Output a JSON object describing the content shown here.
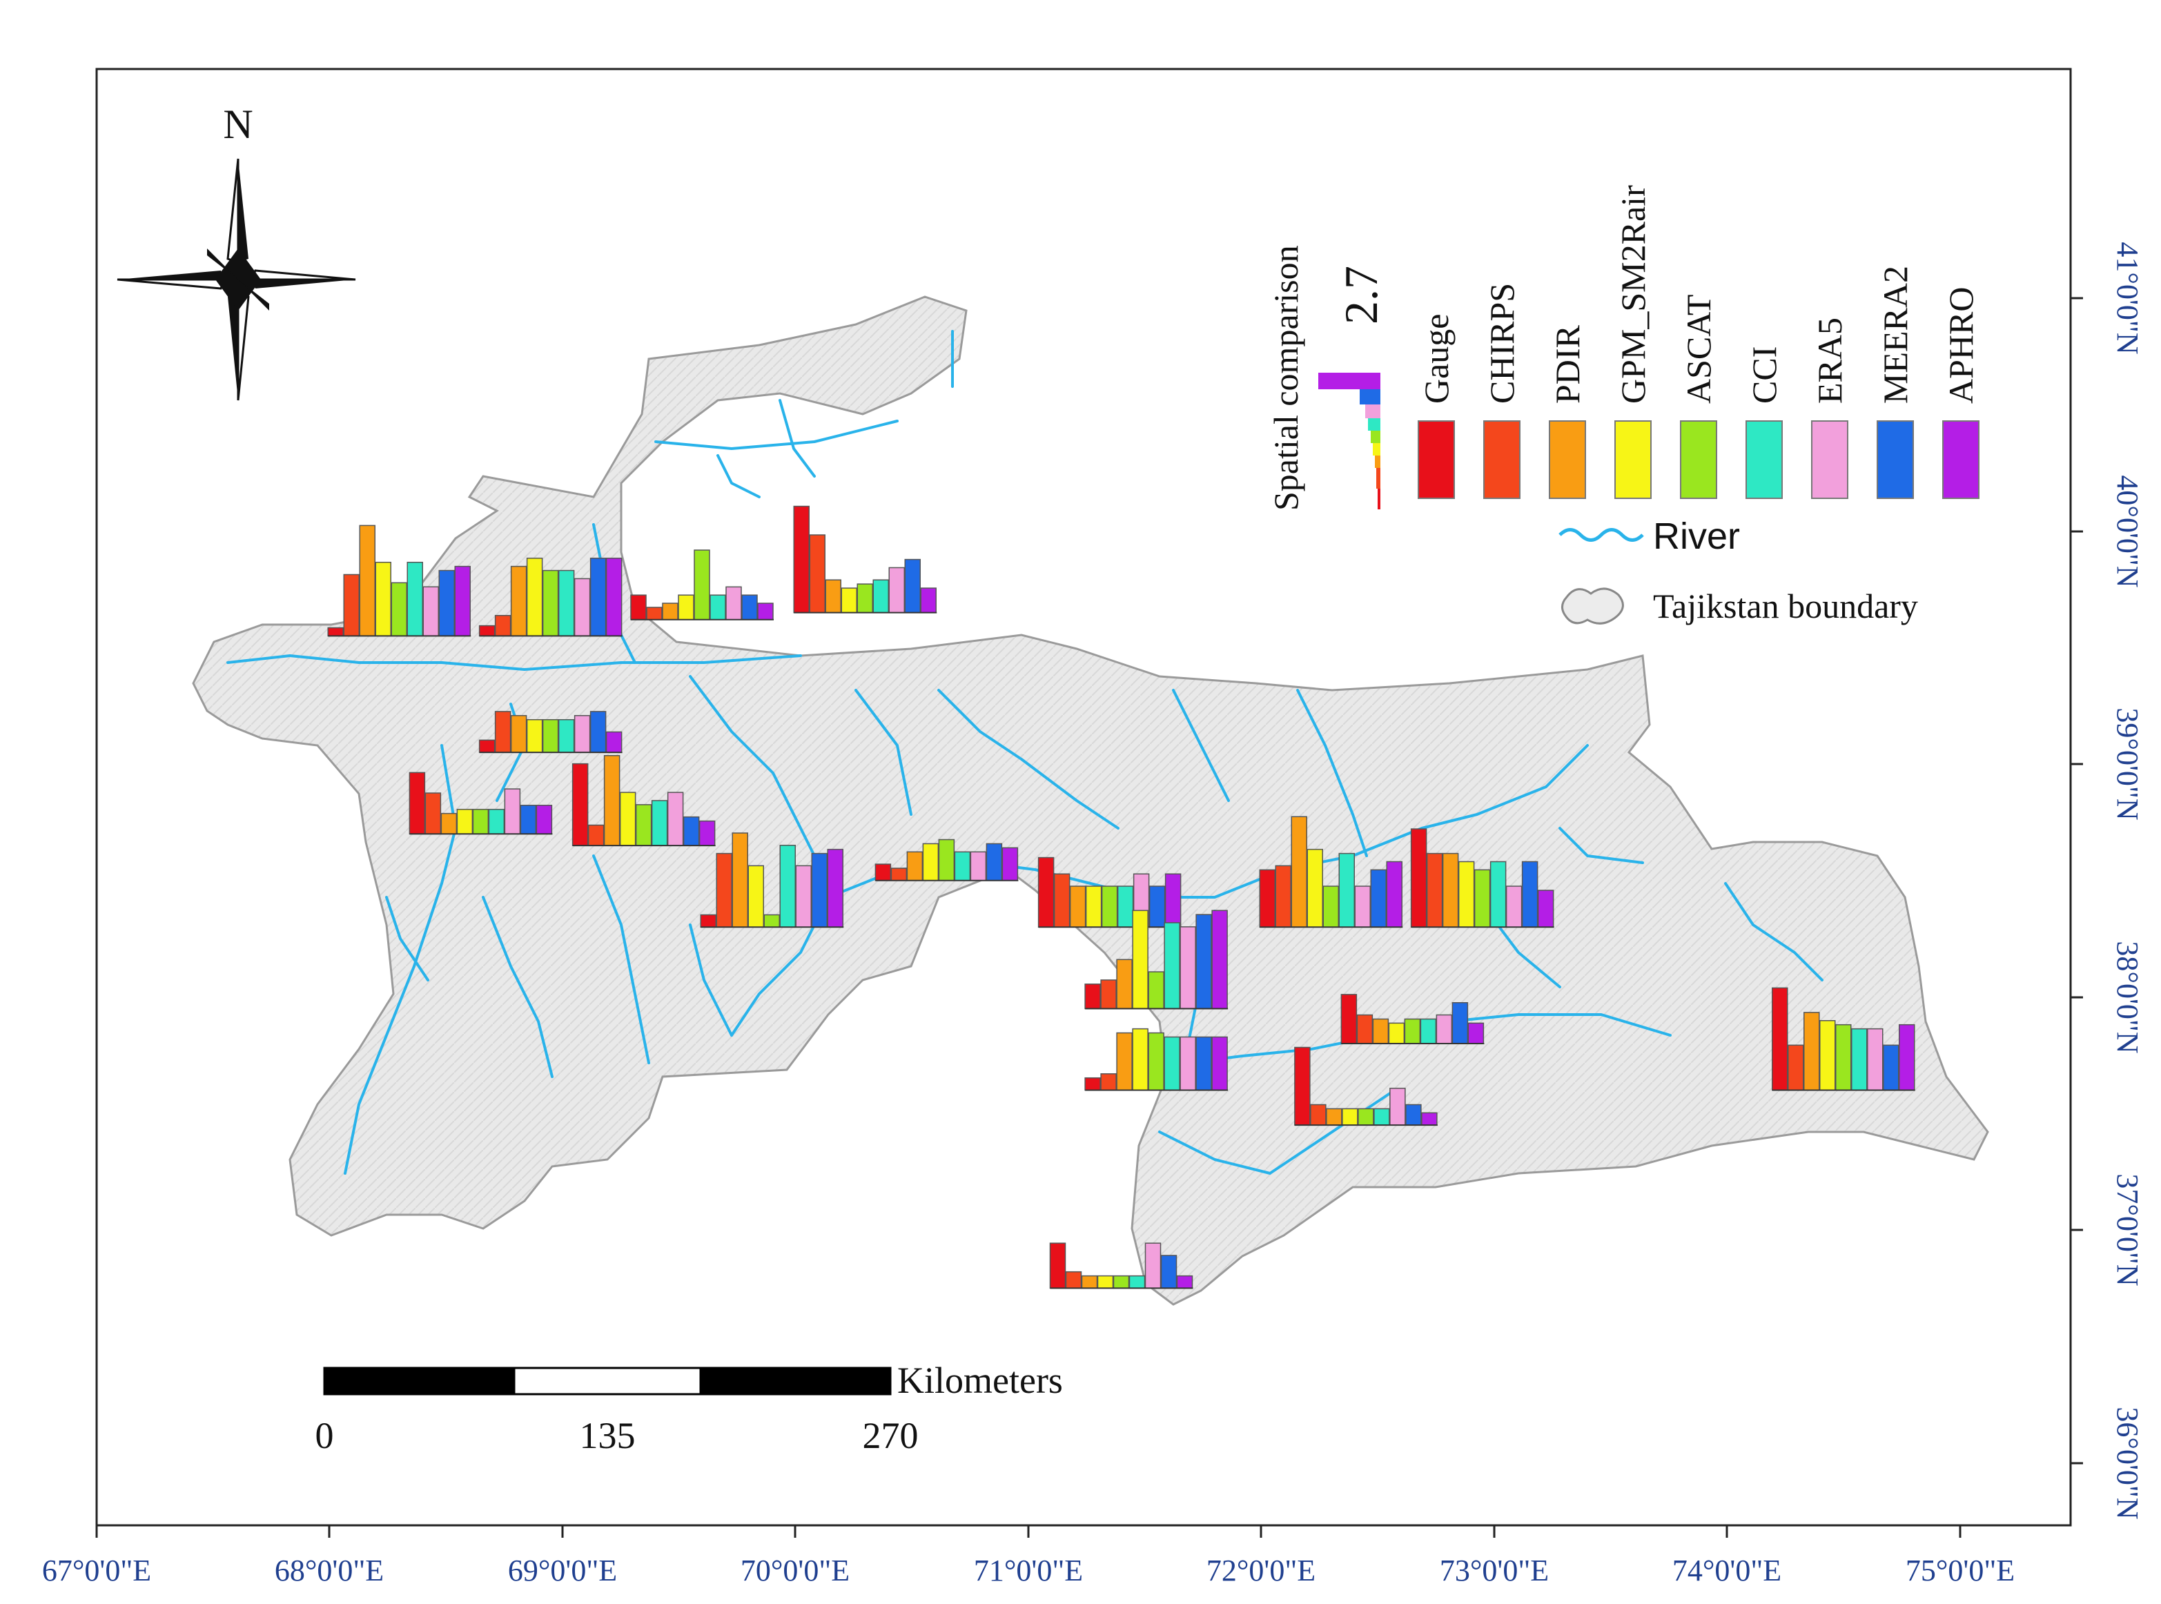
{
  "map": {
    "north_label": "N",
    "x_ticks": [
      "67°0'0\"E",
      "68°0'0\"E",
      "69°0'0\"E",
      "70°0'0\"E",
      "71°0'0\"E",
      "72°0'0\"E",
      "73°0'0\"E",
      "74°0'0\"E",
      "75°0'0\"E"
    ],
    "y_ticks": [
      "41°0'0\"N",
      "40°0'0\"N",
      "39°0'0\"N",
      "38°0'0\"N",
      "37°0'0\"N",
      "36°0'0\"N"
    ],
    "scale_bar": {
      "unit": "Kilometers",
      "labels": [
        "0",
        "135",
        "270"
      ]
    },
    "legend": {
      "title": "Spatial comparison",
      "max_value": "2.7",
      "products": [
        {
          "name": "Gauge",
          "color": "#e8101a"
        },
        {
          "name": "CHIRPS",
          "color": "#f4471c"
        },
        {
          "name": "PDIR",
          "color": "#f99d13"
        },
        {
          "name": "GPM_SM2Rair",
          "color": "#f7f516"
        },
        {
          "name": "ASCAT",
          "color": "#9ae61f"
        },
        {
          "name": "CCI",
          "color": "#2ee8c4"
        },
        {
          "name": "ERA5",
          "color": "#f2a0dc"
        },
        {
          "name": "MEERA2",
          "color": "#1f6be6"
        },
        {
          "name": "APHRO",
          "color": "#b41ee6"
        }
      ],
      "river_label": "River",
      "boundary_label": "Tajikstan boundary"
    },
    "colors": {
      "river": "#29b3ea",
      "land": "#e8e8e8",
      "axis_text": "#1f3f8f"
    }
  },
  "chart_data": {
    "type": "bar",
    "title": "Spatial comparison",
    "categories": [
      "Gauge",
      "CHIRPS",
      "PDIR",
      "GPM_SM2Rair",
      "ASCAT",
      "CCI",
      "ERA5",
      "MEERA2",
      "APHRO"
    ],
    "value_max": 2.7,
    "stations": [
      {
        "lon": 68.3,
        "lat": 39.55,
        "values": [
          0.2,
          1.5,
          2.7,
          1.8,
          1.3,
          1.8,
          1.2,
          1.6,
          1.7
        ]
      },
      {
        "lon": 68.95,
        "lat": 39.55,
        "values": [
          0.25,
          0.5,
          1.7,
          1.9,
          1.6,
          1.6,
          1.4,
          1.9,
          1.9
        ]
      },
      {
        "lon": 69.6,
        "lat": 39.62,
        "values": [
          0.6,
          0.3,
          0.4,
          0.6,
          1.7,
          0.6,
          0.8,
          0.6,
          0.4
        ]
      },
      {
        "lon": 70.3,
        "lat": 39.65,
        "values": [
          2.6,
          1.9,
          0.8,
          0.6,
          0.7,
          0.8,
          1.1,
          1.3,
          0.6
        ]
      },
      {
        "lon": 68.95,
        "lat": 39.05,
        "values": [
          0.3,
          1.0,
          0.9,
          0.8,
          0.8,
          0.8,
          0.9,
          1.0,
          0.5
        ]
      },
      {
        "lon": 68.65,
        "lat": 38.7,
        "values": [
          1.5,
          1.0,
          0.5,
          0.6,
          0.6,
          0.6,
          1.1,
          0.7,
          0.7
        ]
      },
      {
        "lon": 69.35,
        "lat": 38.65,
        "values": [
          2.0,
          0.5,
          2.2,
          1.3,
          1.0,
          1.1,
          1.3,
          0.7,
          0.6
        ]
      },
      {
        "lon": 69.9,
        "lat": 38.3,
        "values": [
          0.3,
          1.8,
          2.3,
          1.5,
          0.3,
          2.0,
          1.5,
          1.8,
          1.9
        ]
      },
      {
        "lon": 70.65,
        "lat": 38.5,
        "values": [
          0.4,
          0.3,
          0.7,
          0.9,
          1.0,
          0.7,
          0.7,
          0.9,
          0.8
        ]
      },
      {
        "lon": 71.35,
        "lat": 38.3,
        "values": [
          1.7,
          1.3,
          1.0,
          1.0,
          1.0,
          1.0,
          1.3,
          1.0,
          1.3
        ]
      },
      {
        "lon": 71.55,
        "lat": 37.95,
        "values": [
          0.6,
          0.7,
          1.2,
          2.4,
          0.9,
          2.1,
          2.0,
          2.3,
          2.4
        ]
      },
      {
        "lon": 72.3,
        "lat": 38.3,
        "values": [
          1.4,
          1.5,
          2.7,
          1.9,
          1.0,
          1.8,
          1.0,
          1.4,
          1.6
        ]
      },
      {
        "lon": 72.95,
        "lat": 38.3,
        "values": [
          2.4,
          1.8,
          1.8,
          1.6,
          1.4,
          1.6,
          1.0,
          1.6,
          0.9
        ]
      },
      {
        "lon": 71.55,
        "lat": 37.6,
        "values": [
          0.3,
          0.4,
          1.4,
          1.5,
          1.4,
          1.3,
          1.3,
          1.3,
          1.3
        ]
      },
      {
        "lon": 72.65,
        "lat": 37.8,
        "values": [
          1.2,
          0.7,
          0.6,
          0.5,
          0.6,
          0.6,
          0.7,
          1.0,
          0.5
        ]
      },
      {
        "lon": 72.45,
        "lat": 37.45,
        "values": [
          1.9,
          0.5,
          0.4,
          0.4,
          0.4,
          0.4,
          0.9,
          0.5,
          0.3
        ]
      },
      {
        "lon": 74.5,
        "lat": 37.6,
        "values": [
          2.5,
          1.1,
          1.9,
          1.7,
          1.6,
          1.5,
          1.5,
          1.1,
          1.6
        ]
      },
      {
        "lon": 71.4,
        "lat": 36.75,
        "values": [
          1.1,
          0.4,
          0.3,
          0.3,
          0.3,
          0.3,
          1.1,
          0.8,
          0.3
        ]
      }
    ]
  }
}
